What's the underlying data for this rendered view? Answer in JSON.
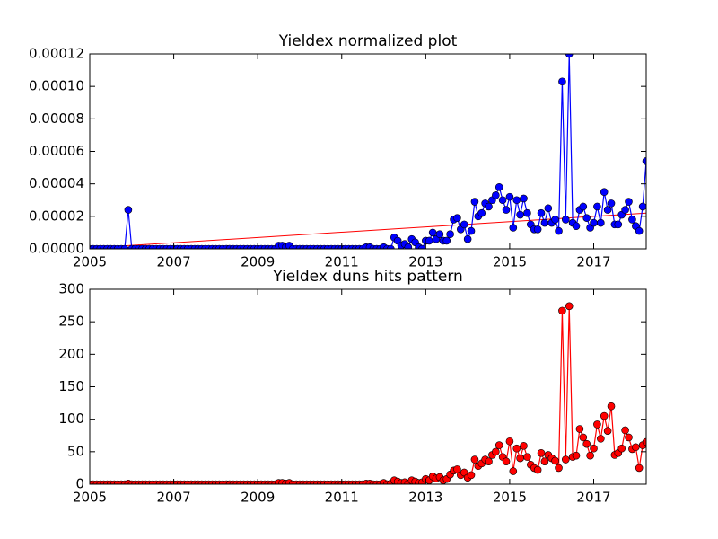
{
  "chart_data": [
    {
      "type": "line",
      "title": "Yieldex normalized plot",
      "color": "#0000ff",
      "marker_color": "#0000ff",
      "xlim": [
        2005,
        2018.25
      ],
      "xticks": [
        2005,
        2007,
        2009,
        2011,
        2013,
        2015,
        2017
      ],
      "ylim": [
        0,
        0.00012
      ],
      "yticks": [
        {
          "value": 0,
          "label": "0.00000"
        },
        {
          "value": 2e-05,
          "label": "0.00002"
        },
        {
          "value": 4e-05,
          "label": "0.00004"
        },
        {
          "value": 6e-05,
          "label": "0.00006"
        },
        {
          "value": 8e-05,
          "label": "0.00008"
        },
        {
          "value": 0.0001,
          "label": "0.00010"
        },
        {
          "value": 0.00012,
          "label": "0.00012"
        }
      ],
      "x": [
        2005,
        2005.083,
        2005.167,
        2005.25,
        2005.333,
        2005.417,
        2005.5,
        2005.583,
        2005.667,
        2005.75,
        2005.833,
        2005.917,
        2006,
        2006.083,
        2006.167,
        2006.25,
        2006.333,
        2006.417,
        2006.5,
        2006.583,
        2006.667,
        2006.75,
        2006.833,
        2006.917,
        2007,
        2007.083,
        2007.167,
        2007.25,
        2007.333,
        2007.417,
        2007.5,
        2007.583,
        2007.667,
        2007.75,
        2007.833,
        2007.917,
        2008,
        2008.083,
        2008.167,
        2008.25,
        2008.333,
        2008.417,
        2008.5,
        2008.583,
        2008.667,
        2008.75,
        2008.833,
        2008.917,
        2009,
        2009.083,
        2009.167,
        2009.25,
        2009.333,
        2009.417,
        2009.5,
        2009.583,
        2009.667,
        2009.75,
        2009.833,
        2009.917,
        2010,
        2010.083,
        2010.167,
        2010.25,
        2010.333,
        2010.417,
        2010.5,
        2010.583,
        2010.667,
        2010.75,
        2010.833,
        2010.917,
        2011,
        2011.083,
        2011.167,
        2011.25,
        2011.333,
        2011.417,
        2011.5,
        2011.583,
        2011.667,
        2011.75,
        2011.833,
        2011.917,
        2012,
        2012.083,
        2012.167,
        2012.25,
        2012.333,
        2012.417,
        2012.5,
        2012.583,
        2012.667,
        2012.75,
        2012.833,
        2012.917,
        2013,
        2013.083,
        2013.167,
        2013.25,
        2013.333,
        2013.417,
        2013.5,
        2013.583,
        2013.667,
        2013.75,
        2013.833,
        2013.917,
        2014,
        2014.083,
        2014.167,
        2014.25,
        2014.333,
        2014.417,
        2014.5,
        2014.583,
        2014.667,
        2014.75,
        2014.833,
        2014.917,
        2015,
        2015.083,
        2015.167,
        2015.25,
        2015.333,
        2015.417,
        2015.5,
        2015.583,
        2015.667,
        2015.75,
        2015.833,
        2015.917,
        2016,
        2016.083,
        2016.167,
        2016.25,
        2016.333,
        2016.417,
        2016.5,
        2016.583,
        2016.667,
        2016.75,
        2016.833,
        2016.917,
        2017,
        2017.083,
        2017.167,
        2017.25,
        2017.333,
        2017.417,
        2017.5,
        2017.583,
        2017.667,
        2017.75,
        2017.833,
        2017.917,
        2018,
        2018.083,
        2018.167,
        2018.25
      ],
      "values": [
        0,
        0,
        0,
        0,
        0,
        0,
        0,
        0,
        0,
        0,
        0,
        2.4e-05,
        0,
        0,
        0,
        0,
        0,
        0,
        0,
        0,
        0,
        0,
        0,
        0,
        0,
        0,
        0,
        0,
        0,
        0,
        0,
        0,
        0,
        0,
        0,
        0,
        0,
        0,
        0,
        0,
        0,
        0,
        0,
        0,
        0,
        0,
        0,
        0,
        0,
        0,
        0,
        0,
        0,
        0,
        2e-06,
        2e-06,
        1e-06,
        2e-06,
        0,
        0,
        0,
        0,
        0,
        0,
        0,
        0,
        0,
        0,
        0,
        0,
        0,
        0,
        0,
        0,
        0,
        0,
        0,
        0,
        0,
        1e-06,
        1e-06,
        0,
        0,
        0,
        1e-06,
        0,
        0,
        7e-06,
        5e-06,
        2e-06,
        3e-06,
        1e-06,
        6e-06,
        4e-06,
        1e-06,
        0,
        5e-06,
        5e-06,
        1e-05,
        6e-06,
        9e-06,
        5e-06,
        5e-06,
        9e-06,
        1.8e-05,
        1.9e-05,
        1.2e-05,
        1.5e-05,
        6e-06,
        1.1e-05,
        2.9e-05,
        2e-05,
        2.2e-05,
        2.8e-05,
        2.6e-05,
        3e-05,
        3.3e-05,
        3.8e-05,
        3e-05,
        2.4e-05,
        3.2e-05,
        1.3e-05,
        3e-05,
        2.1e-05,
        3.1e-05,
        2.2e-05,
        1.5e-05,
        1.2e-05,
        1.2e-05,
        2.2e-05,
        1.6e-05,
        2.5e-05,
        1.6e-05,
        1.8e-05,
        1.1e-05,
        0.000103,
        1.8e-05,
        0.00012,
        1.6e-05,
        1.4e-05,
        2.4e-05,
        2.6e-05,
        1.9e-05,
        1.3e-05,
        1.6e-05,
        2.6e-05,
        1.6e-05,
        3.5e-05,
        2.4e-05,
        2.8e-05,
        1.5e-05,
        1.5e-05,
        2.1e-05,
        2.4e-05,
        2.9e-05,
        1.8e-05,
        1.4e-05,
        1.1e-05,
        2.6e-05,
        5.4e-05
      ],
      "trend": {
        "color": "#ff0000",
        "x": [
          2005,
          2018.25
        ],
        "values": [
          5e-07,
          2.2e-05
        ]
      }
    },
    {
      "type": "line",
      "title": "Yieldex duns hits pattern",
      "color": "#ff0000",
      "marker_color": "#ff0000",
      "xlim": [
        2005,
        2018.25
      ],
      "xticks": [
        2005,
        2007,
        2009,
        2011,
        2013,
        2015,
        2017
      ],
      "ylim": [
        0,
        300
      ],
      "yticks": [
        0,
        50,
        100,
        150,
        200,
        250,
        300
      ],
      "x": [
        2005,
        2005.083,
        2005.167,
        2005.25,
        2005.333,
        2005.417,
        2005.5,
        2005.583,
        2005.667,
        2005.75,
        2005.833,
        2005.917,
        2006,
        2006.083,
        2006.167,
        2006.25,
        2006.333,
        2006.417,
        2006.5,
        2006.583,
        2006.667,
        2006.75,
        2006.833,
        2006.917,
        2007,
        2007.083,
        2007.167,
        2007.25,
        2007.333,
        2007.417,
        2007.5,
        2007.583,
        2007.667,
        2007.75,
        2007.833,
        2007.917,
        2008,
        2008.083,
        2008.167,
        2008.25,
        2008.333,
        2008.417,
        2008.5,
        2008.583,
        2008.667,
        2008.75,
        2008.833,
        2008.917,
        2009,
        2009.083,
        2009.167,
        2009.25,
        2009.333,
        2009.417,
        2009.5,
        2009.583,
        2009.667,
        2009.75,
        2009.833,
        2009.917,
        2010,
        2010.083,
        2010.167,
        2010.25,
        2010.333,
        2010.417,
        2010.5,
        2010.583,
        2010.667,
        2010.75,
        2010.833,
        2010.917,
        2011,
        2011.083,
        2011.167,
        2011.25,
        2011.333,
        2011.417,
        2011.5,
        2011.583,
        2011.667,
        2011.75,
        2011.833,
        2011.917,
        2012,
        2012.083,
        2012.167,
        2012.25,
        2012.333,
        2012.417,
        2012.5,
        2012.583,
        2012.667,
        2012.75,
        2012.833,
        2012.917,
        2013,
        2013.083,
        2013.167,
        2013.25,
        2013.333,
        2013.417,
        2013.5,
        2013.583,
        2013.667,
        2013.75,
        2013.833,
        2013.917,
        2014,
        2014.083,
        2014.167,
        2014.25,
        2014.333,
        2014.417,
        2014.5,
        2014.583,
        2014.667,
        2014.75,
        2014.833,
        2014.917,
        2015,
        2015.083,
        2015.167,
        2015.25,
        2015.333,
        2015.417,
        2015.5,
        2015.583,
        2015.667,
        2015.75,
        2015.833,
        2015.917,
        2016,
        2016.083,
        2016.167,
        2016.25,
        2016.333,
        2016.417,
        2016.5,
        2016.583,
        2016.667,
        2016.75,
        2016.833,
        2016.917,
        2017,
        2017.083,
        2017.167,
        2017.25,
        2017.333,
        2017.417,
        2017.5,
        2017.583,
        2017.667,
        2017.75,
        2017.833,
        2017.917,
        2018,
        2018.083,
        2018.167,
        2018.25
      ],
      "values": [
        0,
        0,
        0,
        0,
        0,
        0,
        0,
        0,
        0,
        0,
        0,
        1,
        0,
        0,
        0,
        0,
        0,
        0,
        0,
        0,
        0,
        0,
        0,
        0,
        0,
        0,
        0,
        0,
        0,
        0,
        0,
        0,
        0,
        0,
        0,
        0,
        0,
        0,
        0,
        0,
        0,
        0,
        0,
        0,
        0,
        0,
        0,
        0,
        0,
        0,
        0,
        0,
        0,
        0,
        2,
        2,
        1,
        2,
        0,
        0,
        0,
        0,
        0,
        0,
        0,
        0,
        0,
        0,
        0,
        0,
        0,
        0,
        0,
        0,
        0,
        0,
        0,
        0,
        0,
        1,
        1,
        0,
        0,
        0,
        2,
        0,
        1,
        6,
        4,
        2,
        3,
        1,
        6,
        4,
        2,
        3,
        8,
        6,
        12,
        9,
        11,
        6,
        8,
        15,
        21,
        23,
        14,
        18,
        10,
        14,
        38,
        28,
        32,
        38,
        35,
        45,
        50,
        60,
        42,
        35,
        66,
        20,
        55,
        40,
        59,
        42,
        30,
        25,
        22,
        48,
        35,
        45,
        40,
        36,
        25,
        267,
        38,
        274,
        42,
        44,
        85,
        72,
        62,
        44,
        55,
        92,
        70,
        105,
        82,
        120,
        45,
        48,
        55,
        83,
        72,
        54,
        57,
        25,
        60,
        65
      ]
    }
  ]
}
